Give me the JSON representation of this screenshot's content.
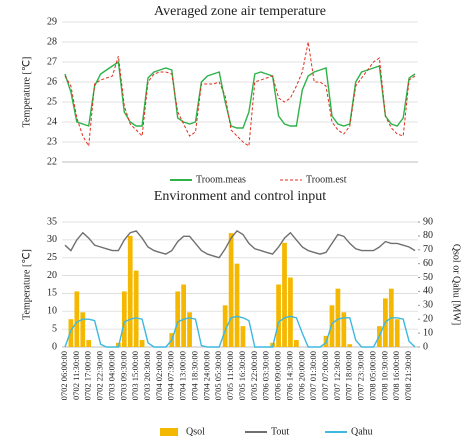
{
  "chart_data": [
    {
      "type": "line",
      "title": "Averaged zone air temperature",
      "y_label": "Temperature [℃]",
      "ylim": [
        22,
        29
      ],
      "yticks": [
        22,
        23,
        24,
        25,
        26,
        27,
        28,
        29
      ],
      "grid": true,
      "legend": "bottom",
      "series": [
        {
          "name": "Troom.meas",
          "color": "#2db34a",
          "line_style": "solid",
          "values": [
            26.4,
            25.5,
            24.0,
            23.9,
            23.8,
            25.8,
            26.4,
            26.6,
            26.8,
            27.0,
            24.5,
            24.0,
            23.8,
            23.8,
            26.2,
            26.5,
            26.6,
            26.7,
            26.6,
            24.2,
            24.0,
            23.9,
            24.0,
            26.0,
            26.3,
            26.4,
            26.5,
            25.0,
            23.8,
            23.7,
            23.7,
            24.5,
            26.4,
            26.5,
            26.4,
            26.3,
            24.3,
            23.9,
            23.8,
            23.8,
            25.6,
            26.3,
            26.5,
            26.6,
            26.7,
            24.3,
            23.9,
            23.8,
            23.9,
            26.0,
            26.5,
            26.6,
            26.7,
            26.8,
            24.3,
            23.9,
            23.8,
            24.2,
            26.2,
            26.4
          ]
        },
        {
          "name": "Troom.est",
          "color": "#e0301e",
          "line_style": "dashed",
          "values": [
            26.3,
            25.8,
            24.2,
            23.3,
            22.8,
            25.9,
            26.1,
            26.2,
            26.3,
            27.3,
            24.8,
            23.9,
            23.6,
            23.3,
            26.0,
            26.4,
            26.5,
            26.5,
            26.4,
            24.5,
            23.9,
            23.3,
            23.5,
            25.9,
            25.9,
            25.9,
            26.0,
            25.3,
            23.6,
            23.3,
            23.0,
            22.8,
            26.0,
            26.1,
            26.2,
            26.3,
            25.2,
            25.0,
            25.2,
            25.8,
            26.5,
            28.0,
            26.0,
            26.0,
            25.8,
            24.0,
            23.6,
            23.4,
            23.8,
            25.8,
            26.2,
            26.6,
            27.0,
            27.2,
            24.3,
            23.7,
            23.4,
            23.3,
            26.1,
            26.3
          ]
        }
      ]
    },
    {
      "type": "combo",
      "title": "Environment and control input",
      "y_label": "Temperature [℃]",
      "y2_label": "Qsol or Qahu [MW]",
      "ylim": [
        0,
        35
      ],
      "yticks": [
        0,
        5,
        10,
        15,
        20,
        25,
        30,
        35
      ],
      "y2lim": [
        0,
        90
      ],
      "y2ticks": [
        0,
        10,
        20,
        30,
        40,
        50,
        60,
        70,
        80,
        90
      ],
      "grid": true,
      "legend": "bottom",
      "categories": [
        "0702 06:00:00",
        null,
        "0702 11:30:00",
        null,
        "0702 17:00:00",
        null,
        "0702 22:30:00",
        null,
        "0703 04:00:00",
        null,
        "0703 09:30:00",
        null,
        "0703 15:00:00",
        null,
        "0703 20:30:00",
        null,
        "0704 02:00:00",
        null,
        "0704 07:30:00",
        null,
        "0704 13:00:00",
        null,
        "0704 18:30:00",
        null,
        "0704 24:00:00",
        null,
        "0705 05:30:00",
        null,
        "0705 11:00:00",
        null,
        "0705 16:30:00",
        null,
        "0705 22:00:00",
        null,
        "0706 03:30:00",
        null,
        "0706 09:00:00",
        null,
        "0706 14:30:00",
        null,
        "0706 20:00:00",
        null,
        "0707 01:30:00",
        null,
        "0707 07:00:00",
        null,
        "0707 12:30:00",
        null,
        "0707 18:00:00",
        null,
        "0707 23:30:00",
        null,
        "0708 05:00:00",
        null,
        "0708 10:30:00",
        null,
        "0708 16:00:00",
        null,
        "0708 21:30:00",
        null
      ],
      "series": [
        {
          "name": "Qsol",
          "type": "bar",
          "axis": "y2",
          "color": "#f5b800",
          "values": [
            0,
            20,
            40,
            25,
            5,
            0,
            0,
            0,
            0,
            3,
            40,
            80,
            55,
            5,
            0,
            0,
            0,
            0,
            10,
            40,
            45,
            25,
            0,
            0,
            0,
            0,
            0,
            30,
            82,
            60,
            15,
            0,
            0,
            0,
            0,
            3,
            45,
            75,
            50,
            5,
            0,
            0,
            0,
            0,
            8,
            30,
            42,
            25,
            2,
            0,
            0,
            0,
            0,
            15,
            35,
            42,
            20,
            0,
            0,
            0
          ]
        },
        {
          "name": "Tout",
          "type": "line",
          "axis": "y",
          "color": "#707070",
          "values": [
            28.5,
            27.0,
            30.0,
            32.0,
            30.5,
            28.5,
            28.0,
            27.5,
            27.0,
            27.0,
            30.0,
            32.0,
            32.5,
            30.5,
            28.0,
            27.0,
            26.5,
            26.0,
            27.0,
            29.5,
            31.0,
            31.0,
            29.0,
            27.0,
            26.0,
            25.5,
            25.0,
            27.5,
            30.5,
            32.5,
            31.5,
            29.0,
            27.5,
            27.0,
            26.5,
            26.0,
            28.0,
            30.5,
            32.0,
            30.0,
            28.0,
            27.0,
            26.5,
            26.0,
            26.5,
            29.0,
            31.5,
            31.0,
            29.0,
            27.5,
            27.0,
            27.0,
            27.0,
            28.0,
            29.5,
            29.0,
            29.0,
            28.5,
            28.0,
            27.0
          ]
        },
        {
          "name": "Qahu",
          "type": "line",
          "axis": "y2",
          "color": "#3db8e0",
          "values": [
            0,
            12,
            18,
            20,
            20,
            19,
            2,
            0,
            0,
            0,
            18,
            20,
            21,
            20,
            3,
            0,
            0,
            0,
            5,
            18,
            20,
            21,
            20,
            1,
            0,
            0,
            0,
            12,
            21,
            22,
            21,
            19,
            0,
            0,
            0,
            0,
            18,
            21,
            22,
            21,
            10,
            0,
            0,
            0,
            3,
            17,
            20,
            21,
            21,
            5,
            0,
            0,
            0,
            8,
            18,
            21,
            21,
            20,
            4,
            0
          ]
        }
      ]
    }
  ]
}
